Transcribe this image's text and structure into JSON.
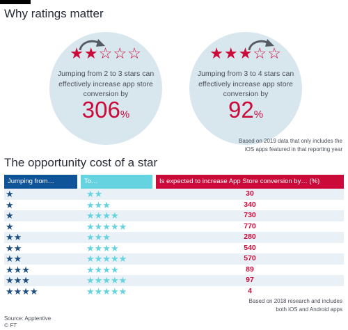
{
  "header": {
    "title": "Why ratings matter"
  },
  "bubble_a": {
    "stars_filled": "★★",
    "stars_empty": "☆☆☆",
    "text": "Jumping from 2 to 3 stars can effectively increase app store conversion by",
    "value": "306",
    "unit": "%"
  },
  "bubble_b": {
    "stars_filled": "★★★",
    "stars_empty": "☆☆",
    "text": "Jumping from 3 to 4 stars can effectively increase app store conversion by",
    "value": "92",
    "unit": "%"
  },
  "note_top": {
    "line1": "Based on 2019 data that only includes the",
    "line2": "iOS apps featured in that reporting year"
  },
  "table": {
    "title": "The opportunity cost of a star",
    "headers": {
      "from": "Jumping from…",
      "to": "To…",
      "increase": "Is expected to increase App Store conversion by… (%)"
    },
    "rows": [
      {
        "from": "★",
        "to": "★★",
        "value": "30"
      },
      {
        "from": "★",
        "to": "★★★",
        "value": "340"
      },
      {
        "from": "★",
        "to": "★★★★",
        "value": "730"
      },
      {
        "from": "★",
        "to": "★★★★★",
        "value": "770"
      },
      {
        "from": "★★",
        "to": "★★★",
        "value": "280"
      },
      {
        "from": "★★",
        "to": "★★★★",
        "value": "540"
      },
      {
        "from": "★★",
        "to": "★★★★★",
        "value": "570"
      },
      {
        "from": "★★★",
        "to": "★★★★",
        "value": "89"
      },
      {
        "from": "★★★",
        "to": "★★★★★",
        "value": "97"
      },
      {
        "from": "★★★★",
        "to": "★★★★★",
        "value": "4"
      }
    ]
  },
  "note_bottom": {
    "line1": "Based on 2018 research and includes",
    "line2": "both iOS and Android apps"
  },
  "footer": {
    "source": "Source: Apptentive",
    "copyright": "© FT"
  },
  "colors": {
    "accent_red": "#cc0a3a",
    "dark_blue": "#0f5499",
    "light_blue": "#66d3e1",
    "circle_fill": "#d8e6ee",
    "row_stripe": "#e9f1f6"
  },
  "icons": {
    "filled_star": "star-filled-icon",
    "outline_star": "star-outline-icon",
    "arrow": "curved-arrow-icon"
  }
}
